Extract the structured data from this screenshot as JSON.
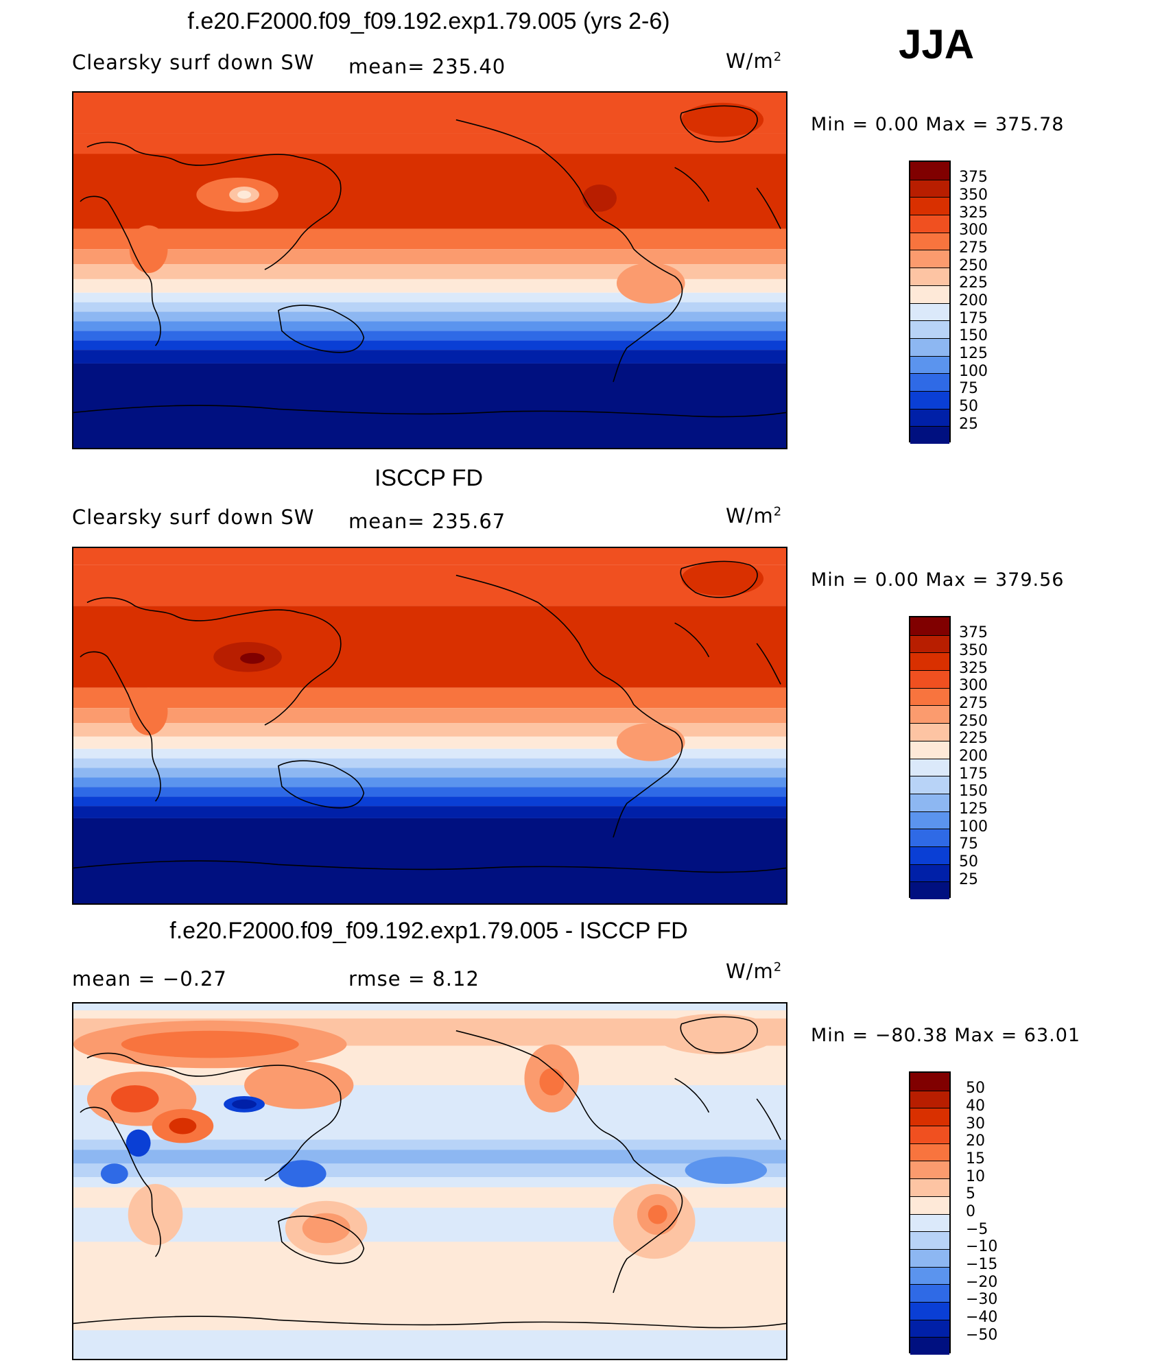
{
  "season": "JJA",
  "units": "W/m",
  "units_sup": "2",
  "panels": [
    {
      "title": "f.e20.F2000.f09_f09.192.exp1.79.005 (yrs 2-6)",
      "left_label": "Clearsky surf down SW",
      "stat": "mean=  235.40",
      "minmax": "Min  =     0.00  Max  =  375.78",
      "colorbar": {
        "labels": [
          "375",
          "350",
          "325",
          "300",
          "275",
          "250",
          "225",
          "200",
          "175",
          "150",
          "125",
          "100",
          "75",
          "50",
          "25"
        ],
        "colors": [
          "#800000",
          "#b81e00",
          "#d93000",
          "#f05020",
          "#f8743e",
          "#fb9b6e",
          "#fdc4a3",
          "#fee9d8",
          "#dbe9fa",
          "#b8d3f7",
          "#8db7f2",
          "#5b94ee",
          "#2f6ae6",
          "#0a3fd5",
          "#0020a8",
          "#001080"
        ]
      },
      "chart_data": {
        "type": "heatmap",
        "title": "f.e20.F2000.f09_f09.192.exp1.79.005 (yrs 2-6)",
        "variable": "Clearsky surf down SW",
        "mean": 235.4,
        "min": 0.0,
        "max": 375.78,
        "contour_levels": [
          25,
          50,
          75,
          100,
          125,
          150,
          175,
          200,
          225,
          250,
          275,
          300,
          325,
          350,
          375
        ],
        "zonal_bands": [
          {
            "lat_range": [
              60,
              90
            ],
            "value": 315
          },
          {
            "lat_range": [
              30,
              60
            ],
            "value": 320
          },
          {
            "lat_range": [
              10,
              30
            ],
            "value": 315
          },
          {
            "lat_range": [
              0,
              10
            ],
            "value": 290
          },
          {
            "lat_range": [
              -10,
              0
            ],
            "value": 255
          },
          {
            "lat_range": [
              -20,
              -10
            ],
            "value": 215
          },
          {
            "lat_range": [
              -30,
              -20
            ],
            "value": 180
          },
          {
            "lat_range": [
              -40,
              -30
            ],
            "value": 135
          },
          {
            "lat_range": [
              -50,
              -40
            ],
            "value": 95
          },
          {
            "lat_range": [
              -60,
              -50
            ],
            "value": 55
          },
          {
            "lat_range": [
              -90,
              -60
            ],
            "value": 15
          }
        ]
      }
    },
    {
      "title": "ISCCP FD",
      "left_label": "Clearsky surf down SW",
      "stat": "mean=  235.67",
      "minmax": "Min  =     0.00  Max  =  379.56",
      "colorbar": {
        "labels": [
          "375",
          "350",
          "325",
          "300",
          "275",
          "250",
          "225",
          "200",
          "175",
          "150",
          "125",
          "100",
          "75",
          "50",
          "25"
        ],
        "colors": [
          "#800000",
          "#b81e00",
          "#d93000",
          "#f05020",
          "#f8743e",
          "#fb9b6e",
          "#fdc4a3",
          "#fee9d8",
          "#dbe9fa",
          "#b8d3f7",
          "#8db7f2",
          "#5b94ee",
          "#2f6ae6",
          "#0a3fd5",
          "#0020a8",
          "#001080"
        ]
      },
      "chart_data": {
        "type": "heatmap",
        "title": "ISCCP FD",
        "variable": "Clearsky surf down SW",
        "mean": 235.67,
        "min": 0.0,
        "max": 379.56,
        "contour_levels": [
          25,
          50,
          75,
          100,
          125,
          150,
          175,
          200,
          225,
          250,
          275,
          300,
          325,
          350,
          375
        ],
        "zonal_bands": [
          {
            "lat_range": [
              60,
              90
            ],
            "value": 315
          },
          {
            "lat_range": [
              30,
              60
            ],
            "value": 325
          },
          {
            "lat_range": [
              10,
              30
            ],
            "value": 320
          },
          {
            "lat_range": [
              0,
              10
            ],
            "value": 290
          },
          {
            "lat_range": [
              -10,
              0
            ],
            "value": 255
          },
          {
            "lat_range": [
              -20,
              -10
            ],
            "value": 215
          },
          {
            "lat_range": [
              -30,
              -20
            ],
            "value": 180
          },
          {
            "lat_range": [
              -40,
              -30
            ],
            "value": 135
          },
          {
            "lat_range": [
              -50,
              -40
            ],
            "value": 95
          },
          {
            "lat_range": [
              -60,
              -50
            ],
            "value": 55
          },
          {
            "lat_range": [
              -90,
              -60
            ],
            "value": 15
          }
        ]
      }
    },
    {
      "title": "f.e20.F2000.f09_f09.192.exp1.79.005 - ISCCP FD",
      "left_label": "mean  =    −0.27",
      "stat": "rmse  =     8.12",
      "minmax": "Min  = −80.38  Max  =    63.01",
      "colorbar": {
        "labels": [
          "50",
          "40",
          "30",
          "20",
          "15",
          "10",
          "5",
          "0",
          "−5",
          "−10",
          "−15",
          "−20",
          "−30",
          "−40",
          "−50"
        ],
        "colors": [
          "#800000",
          "#b81e00",
          "#d93000",
          "#f05020",
          "#f8743e",
          "#fb9b6e",
          "#fdc4a3",
          "#fee9d8",
          "#dbe9fa",
          "#b8d3f7",
          "#8db7f2",
          "#5b94ee",
          "#2f6ae6",
          "#0a3fd5",
          "#0020a8",
          "#001080"
        ]
      },
      "chart_data": {
        "type": "heatmap",
        "title": "f.e20.F2000.f09_f09.192.exp1.79.005 - ISCCP FD",
        "mean": -0.27,
        "rmse": 8.12,
        "min": -80.38,
        "max": 63.01,
        "contour_levels": [
          -50,
          -40,
          -30,
          -20,
          -15,
          -10,
          -5,
          0,
          5,
          10,
          15,
          20,
          30,
          40,
          50
        ]
      }
    }
  ]
}
